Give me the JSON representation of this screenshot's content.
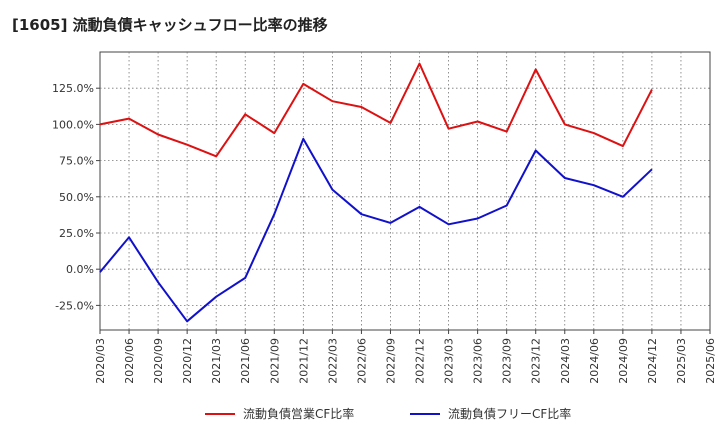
{
  "chart_data": {
    "type": "line",
    "title": "[1605]  流動負債キャッシュフロー比率の推移",
    "x": [
      "2020/03",
      "2020/06",
      "2020/09",
      "2020/12",
      "2021/03",
      "2021/06",
      "2021/09",
      "2021/12",
      "2022/03",
      "2022/06",
      "2022/09",
      "2022/12",
      "2023/03",
      "2023/06",
      "2023/09",
      "2023/12",
      "2024/03",
      "2024/06",
      "2024/09",
      "2024/12"
    ],
    "xticks": [
      "2020/03",
      "2020/06",
      "2020/09",
      "2020/12",
      "2021/03",
      "2021/06",
      "2021/09",
      "2021/12",
      "2022/03",
      "2022/06",
      "2022/09",
      "2022/12",
      "2023/03",
      "2023/06",
      "2023/09",
      "2023/12",
      "2024/03",
      "2024/06",
      "2024/09",
      "2024/12",
      "2025/03",
      "2025/06"
    ],
    "ylim": [
      -0.42,
      1.5
    ],
    "yticks": [
      -0.25,
      0,
      0.25,
      0.5,
      0.75,
      1.0,
      1.25
    ],
    "ytick_labels": [
      "-25.0%",
      "0.0%",
      "25.0%",
      "50.0%",
      "75.0%",
      "100.0%",
      "125.0%"
    ],
    "series": [
      {
        "name": "流動負債営業CF比率",
        "color": "#dd1111",
        "values": [
          1.0,
          1.04,
          0.93,
          0.86,
          0.78,
          1.07,
          0.94,
          1.28,
          1.16,
          1.12,
          1.01,
          1.42,
          0.97,
          1.02,
          0.95,
          1.38,
          1.0,
          0.94,
          0.85,
          1.24
        ]
      },
      {
        "name": "流動負債フリーCF比率",
        "color": "#1111cc",
        "values": [
          -0.02,
          0.22,
          -0.09,
          -0.36,
          -0.19,
          -0.06,
          0.38,
          0.9,
          0.55,
          0.38,
          0.32,
          0.43,
          0.31,
          0.35,
          0.44,
          0.82,
          0.63,
          0.58,
          0.5,
          0.69
        ]
      }
    ],
    "grid": true,
    "legend_position": "bottom"
  }
}
